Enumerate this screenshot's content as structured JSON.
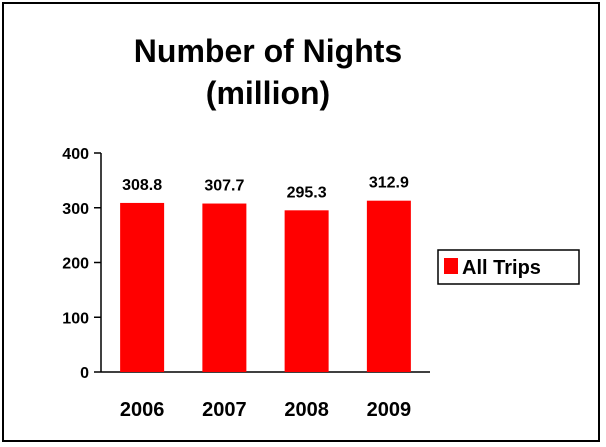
{
  "chart_data": {
    "type": "bar",
    "title_lines": [
      "Number of Nights",
      "(million)"
    ],
    "categories": [
      "2006",
      "2007",
      "2008",
      "2009"
    ],
    "series": [
      {
        "name": "All Trips",
        "values": [
          308.8,
          307.7,
          295.3,
          312.9
        ],
        "value_labels": [
          "308.8",
          "307.7",
          "295.3",
          "312.9"
        ],
        "color": "#ff0000"
      }
    ],
    "yticks": [
      "0",
      "100",
      "200",
      "300",
      "400"
    ],
    "ylim": [
      0,
      400
    ],
    "grid": false,
    "legend_position": "right"
  }
}
